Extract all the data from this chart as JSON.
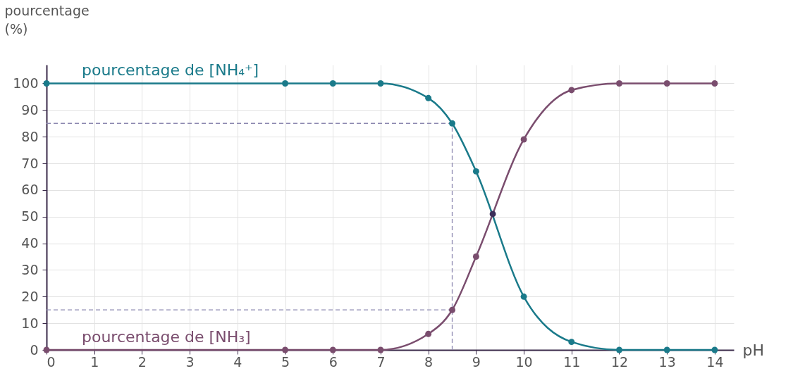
{
  "chart_data": {
    "type": "line",
    "xlabel": "pH",
    "ylabel": "pourcentage\n(%)",
    "xlim": [
      0,
      14.4
    ],
    "ylim": [
      0,
      107
    ],
    "xticks": [
      0,
      1,
      2,
      3,
      4,
      5,
      6,
      7,
      8,
      9,
      10,
      11,
      12,
      13,
      14
    ],
    "yticks": [
      0,
      10,
      20,
      30,
      40,
      50,
      60,
      70,
      80,
      90,
      100
    ],
    "grid": true,
    "marker": "circle",
    "line_style": "solid",
    "series": [
      {
        "name": "pourcentage de [NH₄⁺]",
        "color": "#1a7a8a",
        "x": [
          0,
          5,
          6,
          7,
          8,
          8.5,
          9,
          10,
          11,
          12,
          13,
          14
        ],
        "values": [
          100,
          100,
          100,
          100,
          94.5,
          85,
          67,
          20,
          3,
          0,
          0,
          0
        ]
      },
      {
        "name": "pourcentage de [NH₃]",
        "color": "#7a4d6e",
        "x": [
          0,
          5,
          6,
          7,
          8,
          8.5,
          9,
          10,
          11,
          12,
          13,
          14
        ],
        "values": [
          0,
          0,
          0,
          0,
          6,
          15,
          35,
          79,
          97.5,
          100,
          100,
          100
        ]
      },
      {
        "type": "scatter",
        "color": "#3b2e5a",
        "x": [
          9.35
        ],
        "values": [
          51
        ]
      }
    ],
    "ref_lines": [
      {
        "axis": "y",
        "value": 85,
        "color": "#8c88b0",
        "line_style": "dashed"
      },
      {
        "axis": "y",
        "value": 15,
        "color": "#8c88b0",
        "line_style": "dashed"
      },
      {
        "axis": "x",
        "value": 8.5,
        "color": "#8c88b0",
        "line_style": "dashed"
      }
    ]
  }
}
